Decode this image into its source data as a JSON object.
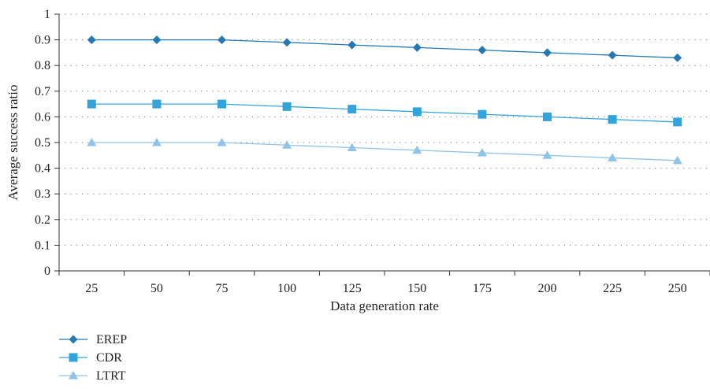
{
  "chart_data": {
    "type": "line",
    "xlabel": "Data generation rate",
    "ylabel": "Average success ratio",
    "categories": [
      "25",
      "50",
      "75",
      "100",
      "125",
      "150",
      "175",
      "200",
      "225",
      "250"
    ],
    "yticks": [
      "0",
      "0.1",
      "0.2",
      "0.3",
      "0.4",
      "0.5",
      "0.6",
      "0.7",
      "0.8",
      "0.9",
      "1"
    ],
    "ylim": [
      0,
      1
    ],
    "grid": "horizontal dotted",
    "legend_position": "bottom-left",
    "series": [
      {
        "name": "EREP",
        "marker": "diamond",
        "color": "#2479b4",
        "values": [
          0.9,
          0.9,
          0.9,
          0.89,
          0.88,
          0.87,
          0.86,
          0.85,
          0.84,
          0.83
        ]
      },
      {
        "name": "CDR",
        "marker": "square",
        "color": "#33a3dc",
        "values": [
          0.65,
          0.65,
          0.65,
          0.64,
          0.63,
          0.62,
          0.61,
          0.6,
          0.59,
          0.58
        ]
      },
      {
        "name": "LTRT",
        "marker": "triangle",
        "color": "#8fc3e8",
        "values": [
          0.5,
          0.5,
          0.5,
          0.49,
          0.48,
          0.47,
          0.46,
          0.45,
          0.44,
          0.43
        ]
      }
    ]
  }
}
